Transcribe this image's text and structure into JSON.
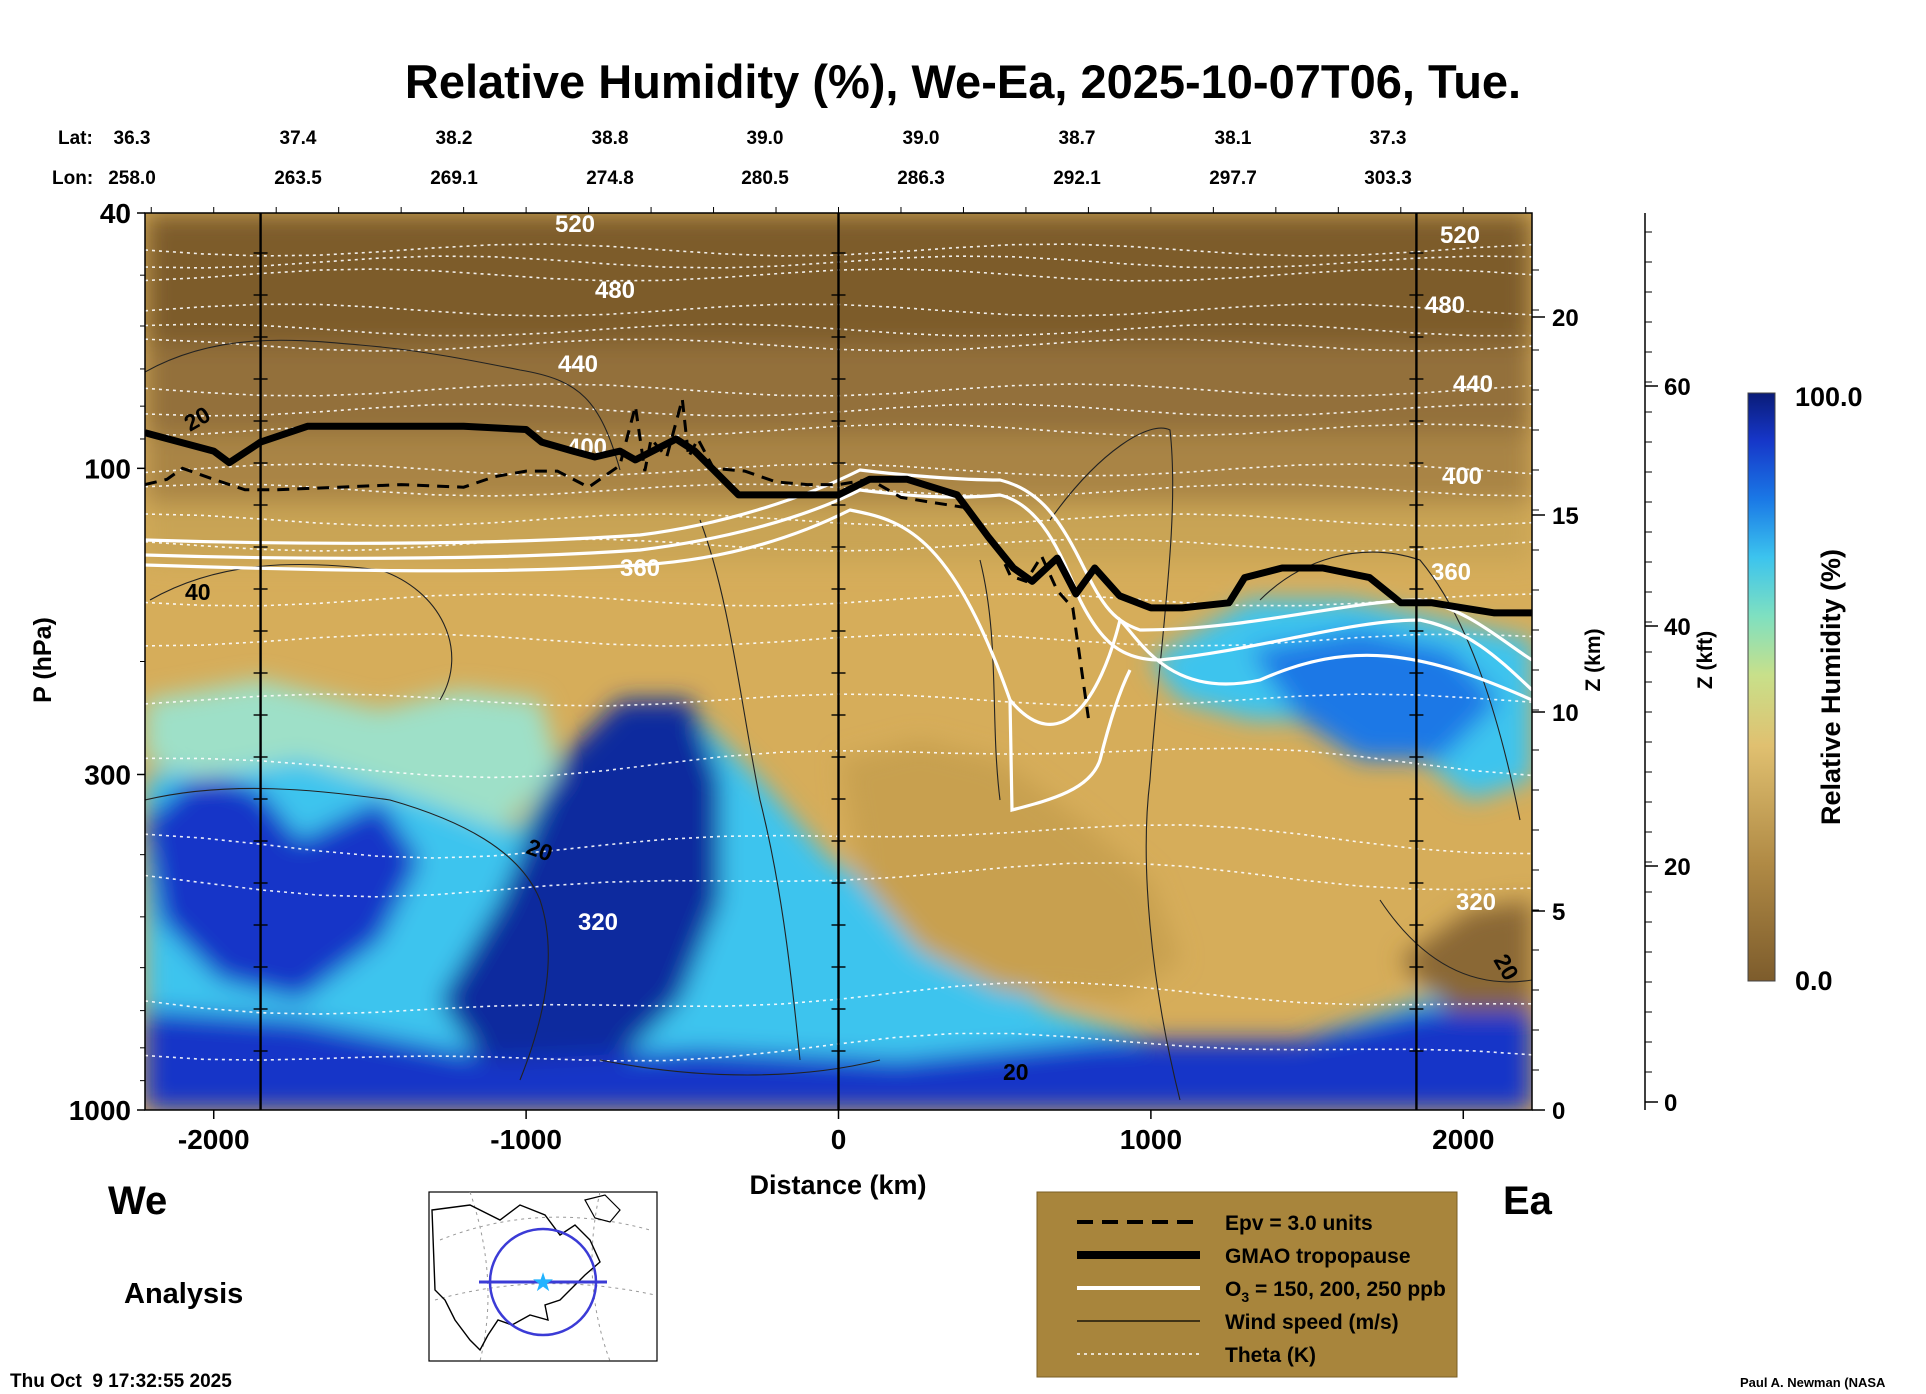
{
  "chart_data": {
    "type": "heatmap",
    "title": "Relative Humidity (%), We-Ea, 2025-10-07T06, Tue.",
    "xlabel": "Distance (km)",
    "ylabel": "P (hPa)",
    "y2label": "Z (km)",
    "y3label": "Z (kft)",
    "xlim": [
      -2220,
      2220
    ],
    "ylim": [
      1000,
      40
    ],
    "x_ticks": [
      -2000,
      -1000,
      0,
      1000,
      2000
    ],
    "x_tick_labels": [
      "-2000",
      "-1000",
      "0",
      "1000",
      "2000"
    ],
    "y_ticks": [
      40,
      100,
      300,
      1000
    ],
    "y_tick_labels": [
      "40",
      "100",
      "300",
      "1000"
    ],
    "z_km_ticks": [
      0,
      5,
      10,
      15,
      20
    ],
    "z_km_labels": [
      "0",
      "5",
      "10",
      "15",
      "20"
    ],
    "z_kft_ticks": [
      0,
      20,
      40,
      60
    ],
    "z_kft_labels": [
      "0",
      "20",
      "40",
      "60"
    ],
    "lat_header": "Lat:",
    "lon_header": "Lon:",
    "lat_values": [
      "36.3",
      "37.4",
      "38.2",
      "38.8",
      "39.0",
      "39.0",
      "38.7",
      "38.1",
      "37.3"
    ],
    "lon_values": [
      "258.0",
      "263.5",
      "269.1",
      "274.8",
      "280.5",
      "286.3",
      "292.1",
      "297.7",
      "303.3"
    ],
    "profile_lines_km": [
      -1850,
      0,
      1850
    ],
    "left_end_label": "We",
    "right_end_label": "Ea",
    "colorbar": {
      "label": "Relative Humidity (%)",
      "min": 0.0,
      "max": 100.0,
      "min_label": "0.0",
      "max_label": "100.0"
    },
    "theta_levels": [
      {
        "value": 520,
        "label": "520"
      },
      {
        "value": 480,
        "label": "480"
      },
      {
        "value": 440,
        "label": "440"
      },
      {
        "value": 400,
        "label": "400"
      },
      {
        "value": 360,
        "label": "360"
      },
      {
        "value": 320,
        "label": "320"
      }
    ],
    "wind_labels": [
      "20",
      "40",
      "20",
      "20",
      "20"
    ],
    "tropopause": {
      "x": [
        -2220,
        -2000,
        -1950,
        -1850,
        -1700,
        -1200,
        -1000,
        -950,
        -850,
        -780,
        -700,
        -650,
        -520,
        -460,
        -320,
        -100,
        0,
        100,
        220,
        380,
        480,
        560,
        620,
        700,
        760,
        820,
        900,
        1000,
        1100,
        1250,
        1300,
        1420,
        1550,
        1700,
        1800,
        1900,
        2000,
        2100,
        2220
      ],
      "p": [
        88,
        94,
        98,
        91,
        86,
        86,
        87,
        91,
        94,
        96,
        94,
        97,
        90,
        94,
        110,
        110,
        110,
        104,
        104,
        110,
        128,
        143,
        150,
        138,
        157,
        143,
        158,
        165,
        165,
        162,
        148,
        143,
        143,
        148,
        162,
        162,
        165,
        168,
        168
      ]
    },
    "epv_3_units": {
      "x": [
        -2220,
        -2150,
        -2100,
        -2000,
        -1900,
        -1800,
        -1600,
        -1400,
        -1200,
        -1100,
        -1000,
        -900,
        -800,
        -700,
        -650,
        -620,
        -600,
        -550,
        -500,
        -480,
        -450,
        -400,
        -300,
        -200,
        -100,
        0,
        100,
        200,
        300,
        400,
        500,
        550,
        600,
        650,
        700,
        750,
        800
      ],
      "p": [
        106,
        104,
        100,
        104,
        108,
        108,
        107,
        106,
        107,
        103,
        101,
        101,
        107,
        99,
        80,
        101,
        90,
        96,
        78,
        96,
        90,
        100,
        101,
        105,
        106,
        106,
        104,
        111,
        113,
        115,
        130,
        147,
        150,
        137,
        155,
        165,
        245
      ]
    },
    "ozone_ppb": [
      150,
      200,
      250
    ],
    "legend": [
      {
        "key": "epv",
        "label": "Epv = 3.0 units"
      },
      {
        "key": "tropopause",
        "label": "GMAO tropopause"
      },
      {
        "key": "ozone",
        "label_prefix": "O",
        "label_sub": "3",
        "label_suffix": " = 150, 200, 250 ppb"
      },
      {
        "key": "wind",
        "label": "Wind speed (m/s)"
      },
      {
        "key": "theta",
        "label": "Theta (K)"
      }
    ],
    "analysis_label": "Analysis",
    "timestamp": "Thu Oct  9 17:32:55 2025",
    "credit": "Paul A. Newman (NASA"
  },
  "colors": {
    "rh_dry": "#8a6734",
    "rh_mid": "#dbb45c",
    "rh_moist": "#4ecfe6",
    "rh_wet": "#0b1f8a",
    "legend_bg": "#a8853c",
    "map_circle": "#3b3bd6",
    "map_star": "#22b3ff"
  }
}
